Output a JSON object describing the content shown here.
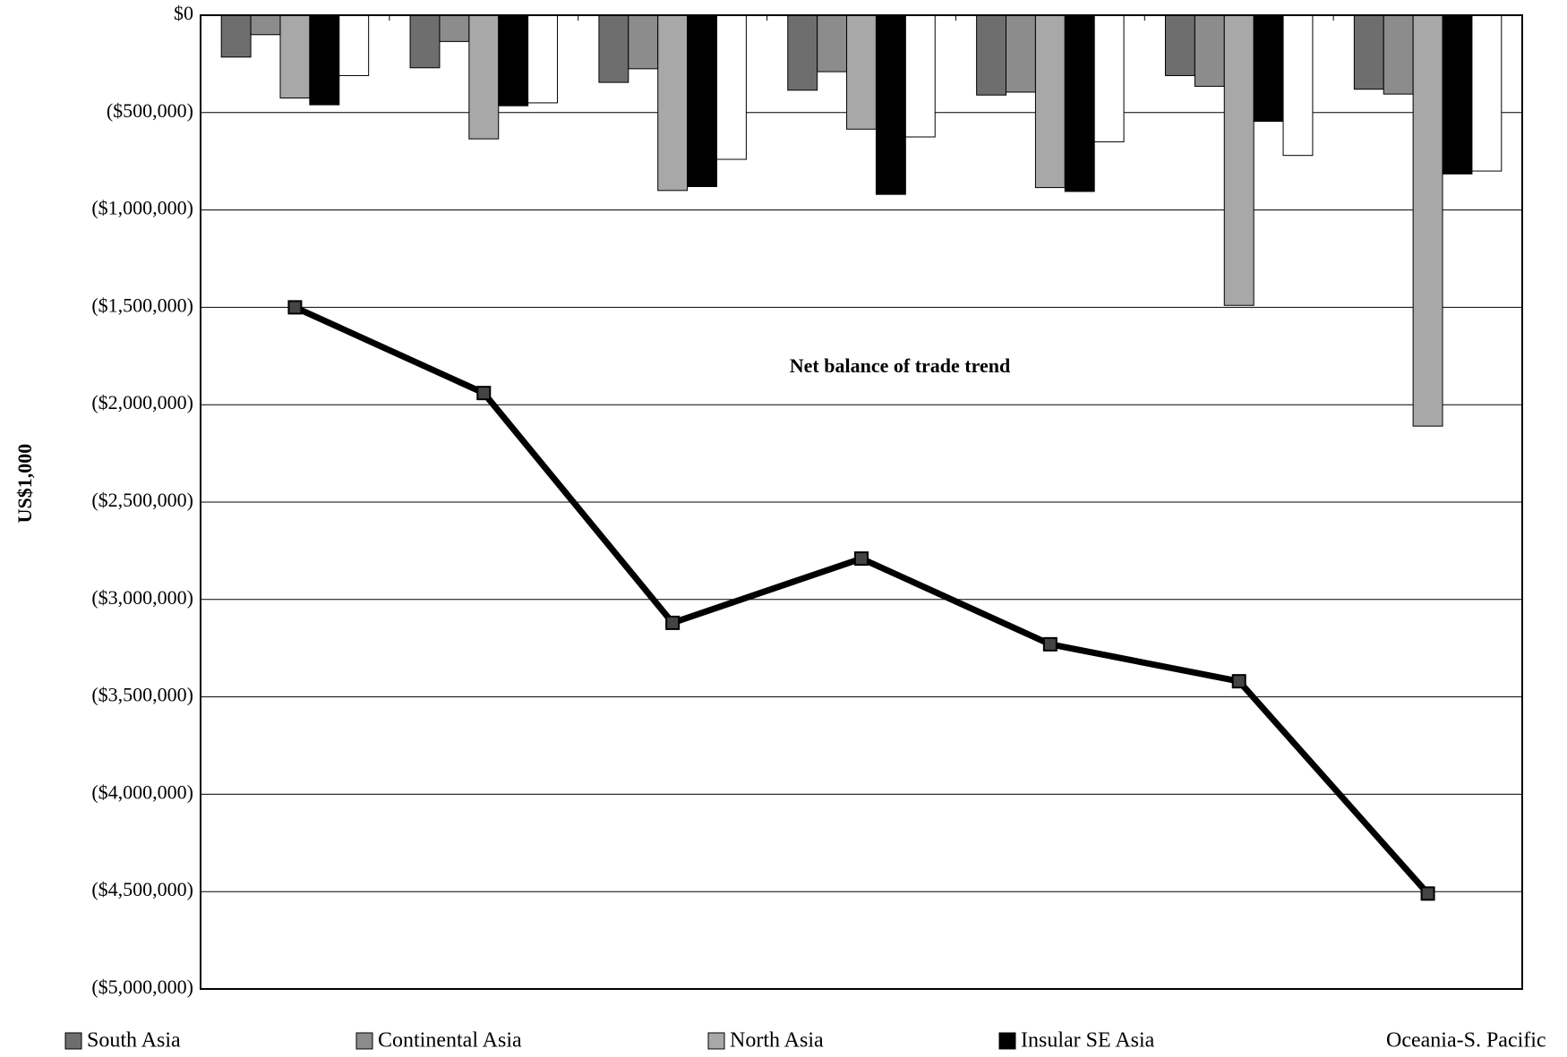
{
  "chart_data": {
    "type": "bar",
    "axis_label": "US$1,000",
    "annotation": "Net balance of trade trend",
    "categories": [
      null,
      null,
      null,
      null,
      null,
      null,
      null
    ],
    "series": [
      {
        "name": "South Asia",
        "color": "#6e6e6e",
        "values": [
          -215000,
          -270000,
          -345000,
          -385000,
          -410000,
          -310000,
          -380000
        ]
      },
      {
        "name": "Continental Asia",
        "color": "#8c8c8c",
        "values": [
          -100000,
          -135000,
          -275000,
          -290000,
          -395000,
          -365000,
          -405000
        ]
      },
      {
        "name": "North Asia",
        "color": "#a8a8a8",
        "values": [
          -425000,
          -635000,
          -900000,
          -585000,
          -885000,
          -1490000,
          -2110000
        ]
      },
      {
        "name": "Insular SE Asia",
        "color": "#000000",
        "values": [
          -460000,
          -465000,
          -880000,
          -920000,
          -905000,
          -545000,
          -815000
        ]
      },
      {
        "name": "Oceania-S. Pacific",
        "color": "#ffffff",
        "values": [
          -310000,
          -450000,
          -740000,
          -625000,
          -650000,
          -720000,
          -800000
        ]
      }
    ],
    "line": {
      "color": "#000000",
      "values": [
        -1500000,
        -1940000,
        -3120000,
        -2790000,
        -3230000,
        -3420000,
        -4510000
      ]
    },
    "ylim": [
      -5000000,
      0
    ],
    "yticks": [
      {
        "value": 0,
        "label": "$0"
      },
      {
        "value": -500000,
        "label": "($500,000)"
      },
      {
        "value": -1000000,
        "label": "($1,000,000)"
      },
      {
        "value": -1500000,
        "label": "($1,500,000)"
      },
      {
        "value": -2000000,
        "label": "($2,000,000)"
      },
      {
        "value": -2500000,
        "label": "($2,500,000)"
      },
      {
        "value": -3000000,
        "label": "($3,000,000)"
      },
      {
        "value": -3500000,
        "label": "($3,500,000)"
      },
      {
        "value": -4000000,
        "label": "($4,000,000)"
      },
      {
        "value": -4500000,
        "label": "($4,500,000)"
      },
      {
        "value": -5000000,
        "label": "($5,000,000)"
      }
    ],
    "grid": true
  }
}
